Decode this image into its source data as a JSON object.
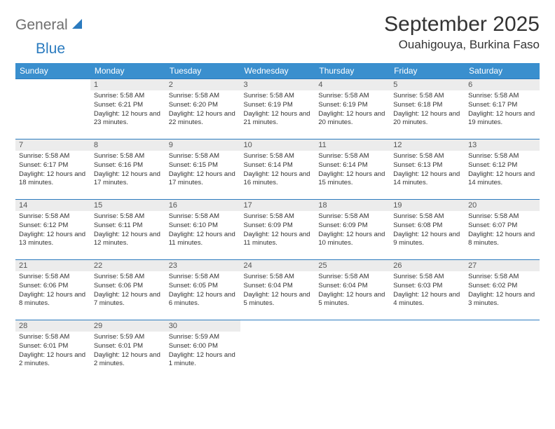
{
  "brand": {
    "gray": "General",
    "blue": "Blue"
  },
  "title": "September 2025",
  "location": "Ouahigouya, Burkina Faso",
  "colors": {
    "header_bg": "#3a8fce",
    "header_fg": "#ffffff",
    "border": "#2b7bbf",
    "daynum_bg": "#ececec",
    "logo_gray": "#6e6e6e",
    "logo_blue": "#2b7bbf"
  },
  "weekdays": [
    "Sunday",
    "Monday",
    "Tuesday",
    "Wednesday",
    "Thursday",
    "Friday",
    "Saturday"
  ],
  "weeks": [
    [
      {
        "day": "",
        "sunrise": "",
        "sunset": "",
        "daylight": ""
      },
      {
        "day": "1",
        "sunrise": "Sunrise: 5:58 AM",
        "sunset": "Sunset: 6:21 PM",
        "daylight": "Daylight: 12 hours and 23 minutes."
      },
      {
        "day": "2",
        "sunrise": "Sunrise: 5:58 AM",
        "sunset": "Sunset: 6:20 PM",
        "daylight": "Daylight: 12 hours and 22 minutes."
      },
      {
        "day": "3",
        "sunrise": "Sunrise: 5:58 AM",
        "sunset": "Sunset: 6:19 PM",
        "daylight": "Daylight: 12 hours and 21 minutes."
      },
      {
        "day": "4",
        "sunrise": "Sunrise: 5:58 AM",
        "sunset": "Sunset: 6:19 PM",
        "daylight": "Daylight: 12 hours and 20 minutes."
      },
      {
        "day": "5",
        "sunrise": "Sunrise: 5:58 AM",
        "sunset": "Sunset: 6:18 PM",
        "daylight": "Daylight: 12 hours and 20 minutes."
      },
      {
        "day": "6",
        "sunrise": "Sunrise: 5:58 AM",
        "sunset": "Sunset: 6:17 PM",
        "daylight": "Daylight: 12 hours and 19 minutes."
      }
    ],
    [
      {
        "day": "7",
        "sunrise": "Sunrise: 5:58 AM",
        "sunset": "Sunset: 6:17 PM",
        "daylight": "Daylight: 12 hours and 18 minutes."
      },
      {
        "day": "8",
        "sunrise": "Sunrise: 5:58 AM",
        "sunset": "Sunset: 6:16 PM",
        "daylight": "Daylight: 12 hours and 17 minutes."
      },
      {
        "day": "9",
        "sunrise": "Sunrise: 5:58 AM",
        "sunset": "Sunset: 6:15 PM",
        "daylight": "Daylight: 12 hours and 17 minutes."
      },
      {
        "day": "10",
        "sunrise": "Sunrise: 5:58 AM",
        "sunset": "Sunset: 6:14 PM",
        "daylight": "Daylight: 12 hours and 16 minutes."
      },
      {
        "day": "11",
        "sunrise": "Sunrise: 5:58 AM",
        "sunset": "Sunset: 6:14 PM",
        "daylight": "Daylight: 12 hours and 15 minutes."
      },
      {
        "day": "12",
        "sunrise": "Sunrise: 5:58 AM",
        "sunset": "Sunset: 6:13 PM",
        "daylight": "Daylight: 12 hours and 14 minutes."
      },
      {
        "day": "13",
        "sunrise": "Sunrise: 5:58 AM",
        "sunset": "Sunset: 6:12 PM",
        "daylight": "Daylight: 12 hours and 14 minutes."
      }
    ],
    [
      {
        "day": "14",
        "sunrise": "Sunrise: 5:58 AM",
        "sunset": "Sunset: 6:12 PM",
        "daylight": "Daylight: 12 hours and 13 minutes."
      },
      {
        "day": "15",
        "sunrise": "Sunrise: 5:58 AM",
        "sunset": "Sunset: 6:11 PM",
        "daylight": "Daylight: 12 hours and 12 minutes."
      },
      {
        "day": "16",
        "sunrise": "Sunrise: 5:58 AM",
        "sunset": "Sunset: 6:10 PM",
        "daylight": "Daylight: 12 hours and 11 minutes."
      },
      {
        "day": "17",
        "sunrise": "Sunrise: 5:58 AM",
        "sunset": "Sunset: 6:09 PM",
        "daylight": "Daylight: 12 hours and 11 minutes."
      },
      {
        "day": "18",
        "sunrise": "Sunrise: 5:58 AM",
        "sunset": "Sunset: 6:09 PM",
        "daylight": "Daylight: 12 hours and 10 minutes."
      },
      {
        "day": "19",
        "sunrise": "Sunrise: 5:58 AM",
        "sunset": "Sunset: 6:08 PM",
        "daylight": "Daylight: 12 hours and 9 minutes."
      },
      {
        "day": "20",
        "sunrise": "Sunrise: 5:58 AM",
        "sunset": "Sunset: 6:07 PM",
        "daylight": "Daylight: 12 hours and 8 minutes."
      }
    ],
    [
      {
        "day": "21",
        "sunrise": "Sunrise: 5:58 AM",
        "sunset": "Sunset: 6:06 PM",
        "daylight": "Daylight: 12 hours and 8 minutes."
      },
      {
        "day": "22",
        "sunrise": "Sunrise: 5:58 AM",
        "sunset": "Sunset: 6:06 PM",
        "daylight": "Daylight: 12 hours and 7 minutes."
      },
      {
        "day": "23",
        "sunrise": "Sunrise: 5:58 AM",
        "sunset": "Sunset: 6:05 PM",
        "daylight": "Daylight: 12 hours and 6 minutes."
      },
      {
        "day": "24",
        "sunrise": "Sunrise: 5:58 AM",
        "sunset": "Sunset: 6:04 PM",
        "daylight": "Daylight: 12 hours and 5 minutes."
      },
      {
        "day": "25",
        "sunrise": "Sunrise: 5:58 AM",
        "sunset": "Sunset: 6:04 PM",
        "daylight": "Daylight: 12 hours and 5 minutes."
      },
      {
        "day": "26",
        "sunrise": "Sunrise: 5:58 AM",
        "sunset": "Sunset: 6:03 PM",
        "daylight": "Daylight: 12 hours and 4 minutes."
      },
      {
        "day": "27",
        "sunrise": "Sunrise: 5:58 AM",
        "sunset": "Sunset: 6:02 PM",
        "daylight": "Daylight: 12 hours and 3 minutes."
      }
    ],
    [
      {
        "day": "28",
        "sunrise": "Sunrise: 5:58 AM",
        "sunset": "Sunset: 6:01 PM",
        "daylight": "Daylight: 12 hours and 2 minutes."
      },
      {
        "day": "29",
        "sunrise": "Sunrise: 5:59 AM",
        "sunset": "Sunset: 6:01 PM",
        "daylight": "Daylight: 12 hours and 2 minutes."
      },
      {
        "day": "30",
        "sunrise": "Sunrise: 5:59 AM",
        "sunset": "Sunset: 6:00 PM",
        "daylight": "Daylight: 12 hours and 1 minute."
      },
      {
        "day": "",
        "sunrise": "",
        "sunset": "",
        "daylight": ""
      },
      {
        "day": "",
        "sunrise": "",
        "sunset": "",
        "daylight": ""
      },
      {
        "day": "",
        "sunrise": "",
        "sunset": "",
        "daylight": ""
      },
      {
        "day": "",
        "sunrise": "",
        "sunset": "",
        "daylight": ""
      }
    ]
  ]
}
